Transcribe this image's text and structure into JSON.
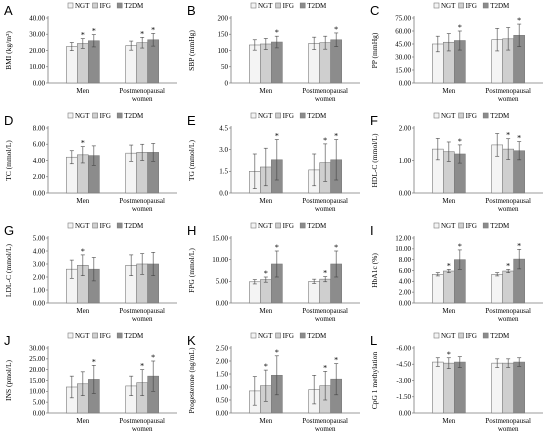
{
  "figure": {
    "legend_labels": [
      "NGT",
      "IFG",
      "T2DM"
    ],
    "categories": [
      [
        "Men"
      ],
      [
        "Postmenopausal",
        "women"
      ]
    ],
    "series_colors": [
      "#f4f4f4",
      "#cfcfcf",
      "#8c8c8c"
    ],
    "bar_edge_color": "#7a7a7a"
  },
  "chart_data": [
    {
      "letter": "A",
      "type": "bar",
      "ylabel": "BMI (kg/m²)",
      "ylim": [
        0,
        40
      ],
      "ticks": [
        "0.00",
        "10.00",
        "20.00",
        "30.00",
        "40.00"
      ],
      "values": [
        [
          22.4,
          24.3,
          26.0
        ],
        [
          23.0,
          24.8,
          26.6
        ]
      ],
      "errors": [
        [
          2.5,
          3.0,
          3.8
        ],
        [
          2.8,
          3.3,
          3.9
        ]
      ],
      "stars": [
        [
          0,
          1,
          1
        ],
        [
          0,
          1,
          1
        ]
      ]
    },
    {
      "letter": "B",
      "type": "bar",
      "ylabel": "SBP (mmHg)",
      "ylim": [
        0,
        200
      ],
      "ticks": [
        "0",
        "50",
        "100",
        "150",
        "200"
      ],
      "values": [
        [
          117,
          120,
          126
        ],
        [
          122,
          124,
          133
        ]
      ],
      "errors": [
        [
          16,
          17,
          18
        ],
        [
          19,
          20,
          21
        ]
      ],
      "stars": [
        [
          0,
          0,
          1
        ],
        [
          0,
          0,
          1
        ]
      ]
    },
    {
      "letter": "C",
      "type": "bar",
      "ylabel": "PP (mmHg)",
      "ylim": [
        0,
        75
      ],
      "ticks": [
        "0.00",
        "15.00",
        "30.00",
        "45.00",
        "60.00",
        "75.00"
      ],
      "values": [
        [
          45,
          47,
          49
        ],
        [
          50,
          51,
          55
        ]
      ],
      "errors": [
        [
          9,
          10,
          11
        ],
        [
          13,
          13,
          13
        ]
      ],
      "stars": [
        [
          0,
          0,
          1
        ],
        [
          0,
          0,
          1
        ]
      ]
    },
    {
      "letter": "D",
      "type": "bar",
      "ylabel": "TC (mmol/L)",
      "ylim": [
        0,
        8
      ],
      "ticks": [
        "0.00",
        "2.00",
        "4.00",
        "6.00",
        "8.00"
      ],
      "values": [
        [
          4.4,
          4.7,
          4.6
        ],
        [
          4.9,
          5.0,
          5.0
        ]
      ],
      "errors": [
        [
          0.8,
          1.0,
          1.2
        ],
        [
          1.0,
          1.0,
          1.1
        ]
      ],
      "stars": [
        [
          0,
          1,
          0
        ],
        [
          0,
          0,
          0
        ]
      ]
    },
    {
      "letter": "E",
      "type": "bar",
      "ylabel": "TG (mmol/L)",
      "ylim": [
        0,
        4.5
      ],
      "ticks": [
        "0.0",
        "1.5",
        "3.0",
        "4.5"
      ],
      "values": [
        [
          1.5,
          1.8,
          2.3
        ],
        [
          1.6,
          2.1,
          2.3
        ]
      ],
      "errors": [
        [
          1.2,
          1.3,
          1.4
        ],
        [
          1.1,
          1.3,
          1.4
        ]
      ],
      "stars": [
        [
          0,
          0,
          1
        ],
        [
          0,
          1,
          1
        ]
      ]
    },
    {
      "letter": "F",
      "type": "bar",
      "ylabel": "HDL-C (mmol/L)",
      "ylim": [
        0,
        2
      ],
      "ticks": [
        "0.00",
        "1.00",
        "2.00"
      ],
      "values": [
        [
          1.35,
          1.27,
          1.2
        ],
        [
          1.48,
          1.35,
          1.3
        ]
      ],
      "errors": [
        [
          0.33,
          0.3,
          0.28
        ],
        [
          0.35,
          0.32,
          0.28
        ]
      ],
      "stars": [
        [
          0,
          0,
          1
        ],
        [
          0,
          1,
          1
        ]
      ]
    },
    {
      "letter": "G",
      "type": "bar",
      "ylabel": "LDL-C (mmol/L)",
      "ylim": [
        0,
        5
      ],
      "ticks": [
        "0.00",
        "1.00",
        "2.00",
        "3.00",
        "4.00",
        "5.00"
      ],
      "values": [
        [
          2.6,
          2.9,
          2.6
        ],
        [
          2.9,
          3.0,
          3.0
        ]
      ],
      "errors": [
        [
          0.7,
          0.8,
          0.9
        ],
        [
          0.8,
          0.8,
          0.9
        ]
      ],
      "stars": [
        [
          0,
          1,
          0
        ],
        [
          0,
          0,
          0
        ]
      ]
    },
    {
      "letter": "H",
      "type": "bar",
      "ylabel": "FPG (mmol/L)",
      "ylim": [
        0,
        15
      ],
      "ticks": [
        "0.00",
        "5.00",
        "10.00",
        "15.00"
      ],
      "values": [
        [
          4.9,
          5.4,
          9.0
        ],
        [
          5.0,
          5.5,
          9.0
        ]
      ],
      "errors": [
        [
          0.5,
          0.6,
          3.0
        ],
        [
          0.5,
          0.6,
          3.0
        ]
      ],
      "stars": [
        [
          0,
          1,
          1
        ],
        [
          0,
          1,
          1
        ]
      ]
    },
    {
      "letter": "I",
      "type": "bar",
      "ylabel": "HbA1c (%)",
      "ylim": [
        0,
        12
      ],
      "ticks": [
        "0.00",
        "2.00",
        "4.00",
        "6.00",
        "8.00",
        "10.00",
        "12.00"
      ],
      "values": [
        [
          5.3,
          5.9,
          8.0
        ],
        [
          5.3,
          5.9,
          8.1
        ]
      ],
      "errors": [
        [
          0.3,
          0.3,
          1.8
        ],
        [
          0.3,
          0.3,
          1.8
        ]
      ],
      "stars": [
        [
          0,
          1,
          1
        ],
        [
          0,
          1,
          1
        ]
      ]
    },
    {
      "letter": "J",
      "type": "bar",
      "ylabel": "INS (pmol/L)",
      "ylim": [
        0,
        30
      ],
      "ticks": [
        "0.00",
        "5.00",
        "10.00",
        "15.00",
        "20.00",
        "25.00",
        "30.00"
      ],
      "values": [
        [
          12.0,
          13.5,
          15.5
        ],
        [
          12.5,
          14.0,
          17.0
        ]
      ],
      "errors": [
        [
          5.0,
          5.5,
          6.5
        ],
        [
          4.5,
          6.0,
          7.0
        ]
      ],
      "stars": [
        [
          0,
          0,
          1
        ],
        [
          0,
          1,
          1
        ]
      ]
    },
    {
      "letter": "K",
      "type": "bar",
      "ylabel": "Progesterone (ng/mL)",
      "ylim": [
        0,
        2.5
      ],
      "ticks": [
        "0.00",
        "0.50",
        "1.00",
        "1.50",
        "2.00",
        "2.50"
      ],
      "values": [
        [
          0.85,
          1.05,
          1.45
        ],
        [
          0.9,
          1.05,
          1.3
        ]
      ],
      "errors": [
        [
          0.55,
          0.6,
          0.75
        ],
        [
          0.55,
          0.55,
          0.6
        ]
      ],
      "stars": [
        [
          0,
          1,
          1
        ],
        [
          0,
          1,
          1
        ]
      ]
    },
    {
      "letter": "L",
      "type": "bar",
      "ylabel": "CpG 1 methylation",
      "ylim": [
        0,
        -6
      ],
      "ticks": [
        "0.00",
        "-1.50",
        "-3.00",
        "-4.50",
        "-6.00"
      ],
      "values": [
        [
          -4.7,
          -4.6,
          -4.7
        ],
        [
          -4.6,
          -4.6,
          -4.7
        ]
      ],
      "errors": [
        [
          0.4,
          0.5,
          0.5
        ],
        [
          0.4,
          0.4,
          0.4
        ]
      ],
      "stars": [
        [
          0,
          1,
          0
        ],
        [
          0,
          0,
          0
        ]
      ]
    }
  ]
}
